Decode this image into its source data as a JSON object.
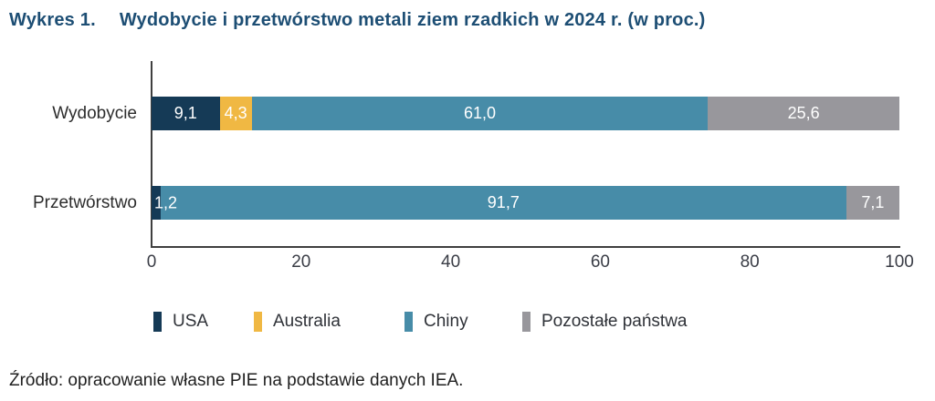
{
  "title": {
    "label": "Wykres 1.",
    "text": "Wydobycie i przetwórstwo metali ziem rzadkich w 2024 r. (w proc.)"
  },
  "source": "Źródło: opracowanie własne PIE na podstawie danych IEA.",
  "colors": {
    "usa": "#153a56",
    "australia": "#f0b843",
    "chiny": "#478ca8",
    "pozostale": "#98979c",
    "title_blue": "#1d4e74",
    "axis": "#3f3f3f"
  },
  "chart_data": {
    "type": "bar",
    "orientation": "horizontal",
    "stacked": true,
    "title": "Wykres 1. Wydobycie i przetwórstwo metali ziem rzadkich w 2024 r. (w proc.)",
    "categories": [
      "Wydobycie",
      "Przetwórstwo"
    ],
    "series": [
      {
        "name": "USA",
        "color": "#153a56",
        "values": [
          9.1,
          1.2
        ],
        "labels": [
          "9,1",
          "1,2"
        ]
      },
      {
        "name": "Australia",
        "color": "#f0b843",
        "values": [
          4.3,
          0
        ],
        "labels": [
          "4,3",
          ""
        ]
      },
      {
        "name": "Chiny",
        "color": "#478ca8",
        "values": [
          61.0,
          91.7
        ],
        "labels": [
          "61,0",
          "91,7"
        ]
      },
      {
        "name": "Pozostałe państwa",
        "color": "#98979c",
        "values": [
          25.6,
          7.1
        ],
        "labels": [
          "25,6",
          "7,1"
        ]
      }
    ],
    "xlabel": "",
    "ylabel": "",
    "xlim": [
      0,
      100
    ],
    "xticks": [
      0,
      20,
      40,
      60,
      80,
      100
    ],
    "grid": false,
    "legend_position": "bottom"
  }
}
